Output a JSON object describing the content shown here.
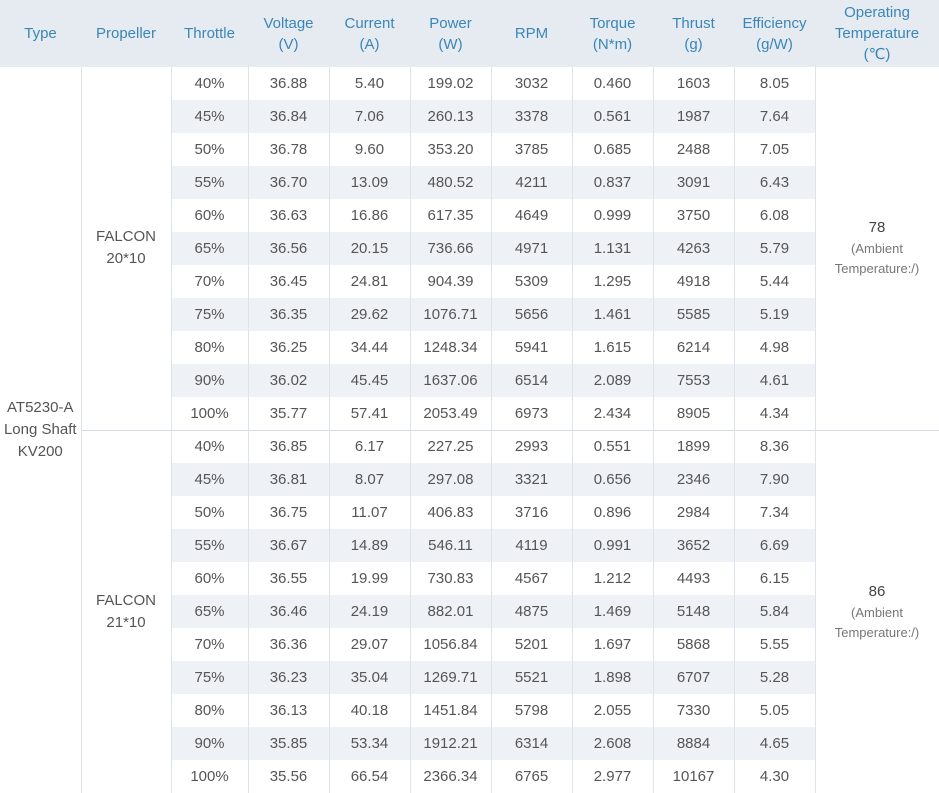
{
  "headers": [
    "Type",
    "Propeller",
    "Throttle",
    [
      "Voltage",
      "(V)"
    ],
    [
      "Current",
      "(A)"
    ],
    [
      "Power",
      "(W)"
    ],
    "RPM",
    [
      "Torque",
      "(N*m)"
    ],
    [
      "Thrust",
      "(g)"
    ],
    [
      "Efficiency",
      "(g/W)"
    ],
    [
      "Operating",
      "Temperature",
      "(℃)"
    ]
  ],
  "type": [
    "AT5230-A",
    "Long Shaft",
    "KV200"
  ],
  "groups": [
    {
      "propeller": [
        "FALCON",
        "20*10"
      ],
      "temperature": "78",
      "temperature_note": [
        "(Ambient",
        "Temperature:/)"
      ],
      "rows": [
        [
          "40%",
          "36.88",
          "5.40",
          "199.02",
          "3032",
          "0.460",
          "1603",
          "8.05"
        ],
        [
          "45%",
          "36.84",
          "7.06",
          "260.13",
          "3378",
          "0.561",
          "1987",
          "7.64"
        ],
        [
          "50%",
          "36.78",
          "9.60",
          "353.20",
          "3785",
          "0.685",
          "2488",
          "7.05"
        ],
        [
          "55%",
          "36.70",
          "13.09",
          "480.52",
          "4211",
          "0.837",
          "3091",
          "6.43"
        ],
        [
          "60%",
          "36.63",
          "16.86",
          "617.35",
          "4649",
          "0.999",
          "3750",
          "6.08"
        ],
        [
          "65%",
          "36.56",
          "20.15",
          "736.66",
          "4971",
          "1.131",
          "4263",
          "5.79"
        ],
        [
          "70%",
          "36.45",
          "24.81",
          "904.39",
          "5309",
          "1.295",
          "4918",
          "5.44"
        ],
        [
          "75%",
          "36.35",
          "29.62",
          "1076.71",
          "5656",
          "1.461",
          "5585",
          "5.19"
        ],
        [
          "80%",
          "36.25",
          "34.44",
          "1248.34",
          "5941",
          "1.615",
          "6214",
          "4.98"
        ],
        [
          "90%",
          "36.02",
          "45.45",
          "1637.06",
          "6514",
          "2.089",
          "7553",
          "4.61"
        ],
        [
          "100%",
          "35.77",
          "57.41",
          "2053.49",
          "6973",
          "2.434",
          "8905",
          "4.34"
        ]
      ]
    },
    {
      "propeller": [
        "FALCON",
        "21*10"
      ],
      "temperature": "86",
      "temperature_note": [
        "(Ambient",
        "Temperature:/)"
      ],
      "rows": [
        [
          "40%",
          "36.85",
          "6.17",
          "227.25",
          "2993",
          "0.551",
          "1899",
          "8.36"
        ],
        [
          "45%",
          "36.81",
          "8.07",
          "297.08",
          "3321",
          "0.656",
          "2346",
          "7.90"
        ],
        [
          "50%",
          "36.75",
          "11.07",
          "406.83",
          "3716",
          "0.896",
          "2984",
          "7.34"
        ],
        [
          "55%",
          "36.67",
          "14.89",
          "546.11",
          "4119",
          "0.991",
          "3652",
          "6.69"
        ],
        [
          "60%",
          "36.55",
          "19.99",
          "730.83",
          "4567",
          "1.212",
          "4493",
          "6.15"
        ],
        [
          "65%",
          "36.46",
          "24.19",
          "882.01",
          "4875",
          "1.469",
          "5148",
          "5.84"
        ],
        [
          "70%",
          "36.36",
          "29.07",
          "1056.84",
          "5201",
          "1.697",
          "5868",
          "5.55"
        ],
        [
          "75%",
          "36.23",
          "35.04",
          "1269.71",
          "5521",
          "1.898",
          "6707",
          "5.28"
        ],
        [
          "80%",
          "36.13",
          "40.18",
          "1451.84",
          "5798",
          "2.055",
          "7330",
          "5.05"
        ],
        [
          "90%",
          "35.85",
          "53.34",
          "1912.21",
          "6314",
          "2.608",
          "8884",
          "4.65"
        ],
        [
          "100%",
          "35.56",
          "66.54",
          "2366.34",
          "6765",
          "2.977",
          "10167",
          "4.30"
        ]
      ]
    }
  ],
  "colors": {
    "header_bg": "#e5ebf1",
    "header_text": "#3a86b8",
    "stripe_bg": "#eef2f7",
    "body_text": "#555555"
  }
}
